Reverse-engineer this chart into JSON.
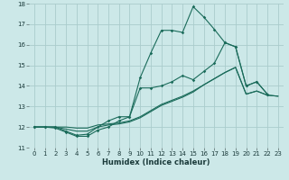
{
  "xlabel": "Humidex (Indice chaleur)",
  "bg_color": "#cce8e8",
  "grid_color": "#aacccc",
  "line_color": "#1a6b5a",
  "xlim": [
    -0.5,
    23.5
  ],
  "ylim": [
    11,
    18
  ],
  "yticks": [
    11,
    12,
    13,
    14,
    15,
    16,
    17,
    18
  ],
  "xticks": [
    0,
    1,
    2,
    3,
    4,
    5,
    6,
    7,
    8,
    9,
    10,
    11,
    12,
    13,
    14,
    15,
    16,
    17,
    18,
    19,
    20,
    21,
    22,
    23
  ],
  "s1_x": [
    0,
    1,
    2,
    3,
    4,
    5,
    6,
    7,
    8,
    9,
    10,
    11,
    12,
    13,
    14,
    15,
    16,
    17,
    18,
    19,
    20,
    21,
    22
  ],
  "s1_y": [
    12.0,
    12.0,
    12.0,
    11.8,
    11.6,
    11.65,
    12.0,
    12.3,
    12.5,
    12.5,
    14.4,
    15.6,
    16.7,
    16.7,
    16.6,
    17.85,
    17.35,
    16.75,
    16.1,
    15.9,
    14.0,
    14.2,
    13.6
  ],
  "s2_x": [
    0,
    1,
    2,
    3,
    4,
    5,
    6,
    7,
    8,
    9,
    10,
    11,
    12,
    13,
    14,
    15,
    16,
    17,
    18,
    19,
    20,
    21,
    22
  ],
  "s2_y": [
    12.0,
    12.0,
    11.95,
    11.75,
    11.55,
    11.55,
    11.85,
    12.0,
    12.3,
    12.5,
    13.9,
    13.9,
    14.0,
    14.2,
    14.5,
    14.3,
    14.7,
    15.1,
    16.1,
    15.9,
    14.0,
    14.2,
    13.6
  ],
  "s3_x": [
    0,
    1,
    2,
    3,
    4,
    5,
    6,
    7,
    8,
    9,
    10,
    11,
    12,
    13,
    14,
    15,
    16,
    17,
    18,
    19,
    20,
    21,
    22,
    23
  ],
  "s3_y": [
    12.0,
    12.0,
    12.0,
    11.9,
    11.8,
    11.8,
    12.0,
    12.1,
    12.15,
    12.25,
    12.45,
    12.75,
    13.05,
    13.25,
    13.45,
    13.7,
    14.05,
    14.35,
    14.65,
    14.9,
    13.6,
    13.75,
    13.55,
    13.5
  ],
  "s4_x": [
    0,
    1,
    2,
    3,
    4,
    5,
    6,
    7,
    8,
    9,
    10,
    11,
    12,
    13,
    14,
    15,
    16,
    17,
    18,
    19,
    20,
    21,
    22,
    23
  ],
  "s4_y": [
    12.0,
    12.0,
    12.0,
    12.0,
    11.95,
    11.95,
    12.1,
    12.15,
    12.2,
    12.3,
    12.5,
    12.8,
    13.1,
    13.3,
    13.5,
    13.75,
    14.05,
    14.35,
    14.65,
    14.9,
    13.6,
    13.75,
    13.55,
    13.5
  ]
}
